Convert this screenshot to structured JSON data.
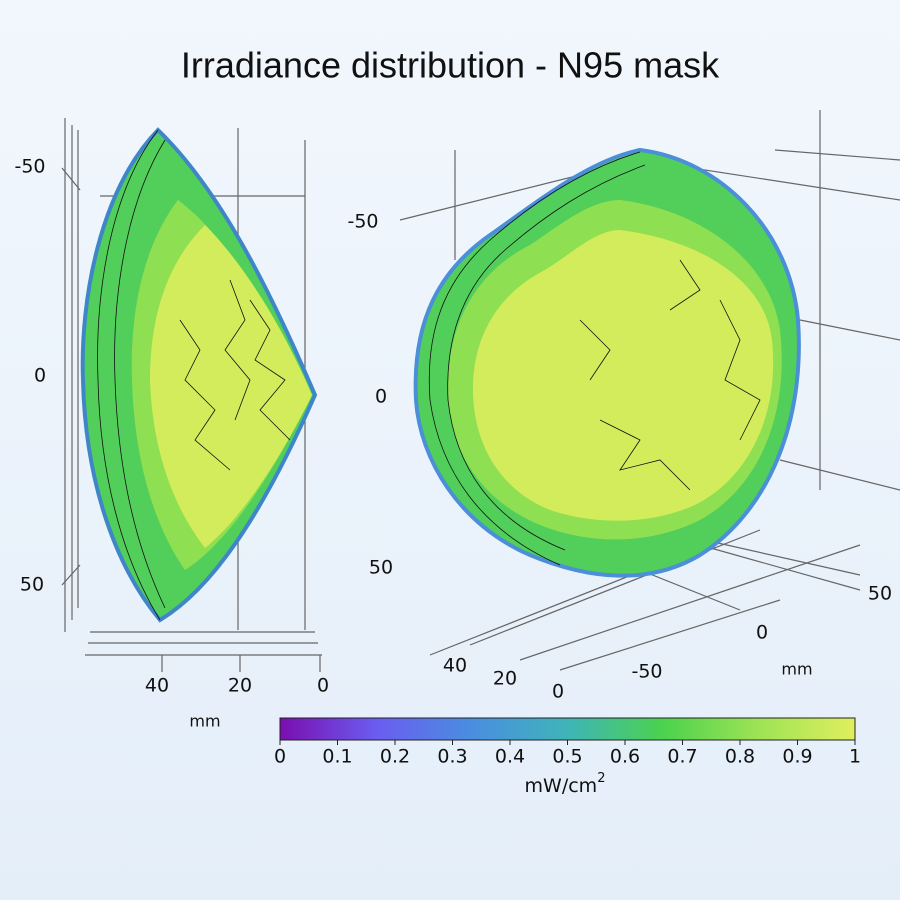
{
  "title": "Irradiance distribution - N95 mask",
  "left_view": {
    "y_ticks": [
      "-50",
      "0",
      "50"
    ],
    "x_ticks": [
      "40",
      "20",
      "0"
    ],
    "x_label": "mm"
  },
  "right_view": {
    "y_ticks": [
      "-50",
      "0",
      "50"
    ],
    "depth_ticks": [
      "40",
      "20",
      "0"
    ],
    "x_ticks": [
      "-50",
      "0",
      "50"
    ],
    "x_label": "mm"
  },
  "colorbar": {
    "lim": [
      0,
      1
    ],
    "ticks": [
      0,
      0.1,
      0.2,
      0.3,
      0.4,
      0.5,
      0.6,
      0.7,
      0.8,
      0.9,
      1
    ],
    "colormap": [
      "#7a0eb0",
      "#6b5cf0",
      "#4a8ee0",
      "#3fb4b8",
      "#4cd24e",
      "#9ee354",
      "#e0ef5e"
    ],
    "label": "mW/cm",
    "label_sup": "2"
  }
}
